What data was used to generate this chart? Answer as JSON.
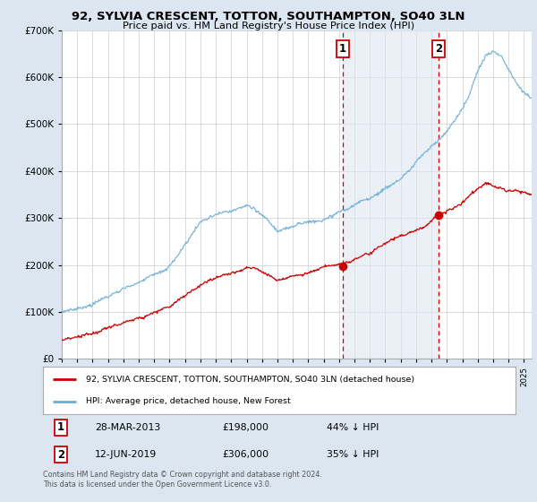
{
  "title": "92, SYLVIA CRESCENT, TOTTON, SOUTHAMPTON, SO40 3LN",
  "subtitle": "Price paid vs. HM Land Registry's House Price Index (HPI)",
  "legend_line1": "92, SYLVIA CRESCENT, TOTTON, SOUTHAMPTON, SO40 3LN (detached house)",
  "legend_line2": "HPI: Average price, detached house, New Forest",
  "annotation1": {
    "label": "1",
    "date": "28-MAR-2013",
    "price": "£198,000",
    "pct": "44% ↓ HPI"
  },
  "annotation2": {
    "label": "2",
    "date": "12-JUN-2019",
    "price": "£306,000",
    "pct": "35% ↓ HPI"
  },
  "footer": "Contains HM Land Registry data © Crown copyright and database right 2024.\nThis data is licensed under the Open Government Licence v3.0.",
  "hpi_color": "#6baed6",
  "price_color": "#cc0000",
  "vline_color": "#cc0000",
  "background_color": "#dce6f1",
  "plot_bg_color": "#ffffff",
  "ylim": [
    0,
    700000
  ],
  "yticks": [
    0,
    100000,
    200000,
    300000,
    400000,
    500000,
    600000,
    700000
  ],
  "xlim_start": 1995,
  "xlim_end": 2025.5,
  "marker1_x": 2013.24,
  "marker1_y": 198000,
  "marker2_x": 2019.45,
  "marker2_y": 306000,
  "vline1_x": 2013.24,
  "vline2_x": 2019.45,
  "span_color": "#dce6f1",
  "span_alpha": 0.6
}
